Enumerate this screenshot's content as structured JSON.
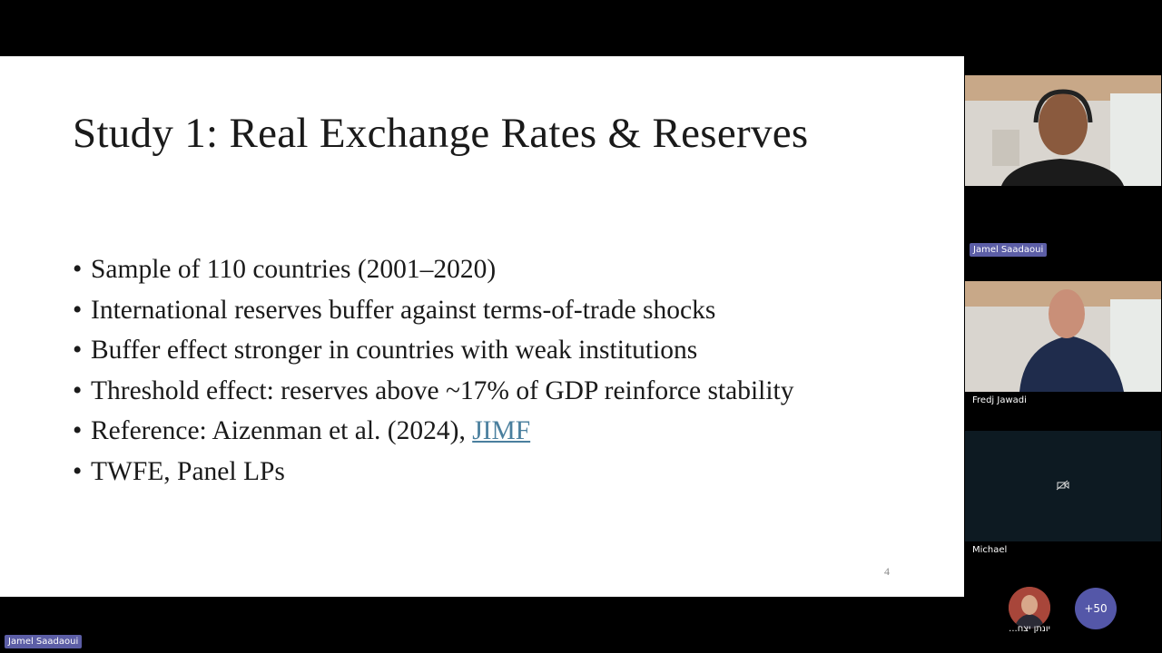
{
  "slide": {
    "title": "Study 1: Real Exchange Rates & Reserves",
    "bullets": [
      {
        "text": "Sample of 110 countries (2001–2020)"
      },
      {
        "text": "International reserves buffer against terms-of-trade shocks"
      },
      {
        "text": "Buffer effect stronger in countries with weak institutions"
      },
      {
        "text": "Threshold effect: reserves above ~17% of GDP reinforce stability"
      },
      {
        "text": "Reference: Aizenman et al. (2024), ",
        "link": "JIMF"
      },
      {
        "text": "TWFE, Panel LPs"
      }
    ],
    "bullet_symbol": "•",
    "page_number": "4"
  },
  "participants": [
    {
      "name": "Jamel Saadaoui"
    },
    {
      "name": "Fredj Jawadi"
    },
    {
      "name": "Michael"
    }
  ],
  "overflow": {
    "avatar_name": "יונתן יצח...",
    "more": "+50"
  },
  "speaker_label": "Jamel Saadaoui"
}
